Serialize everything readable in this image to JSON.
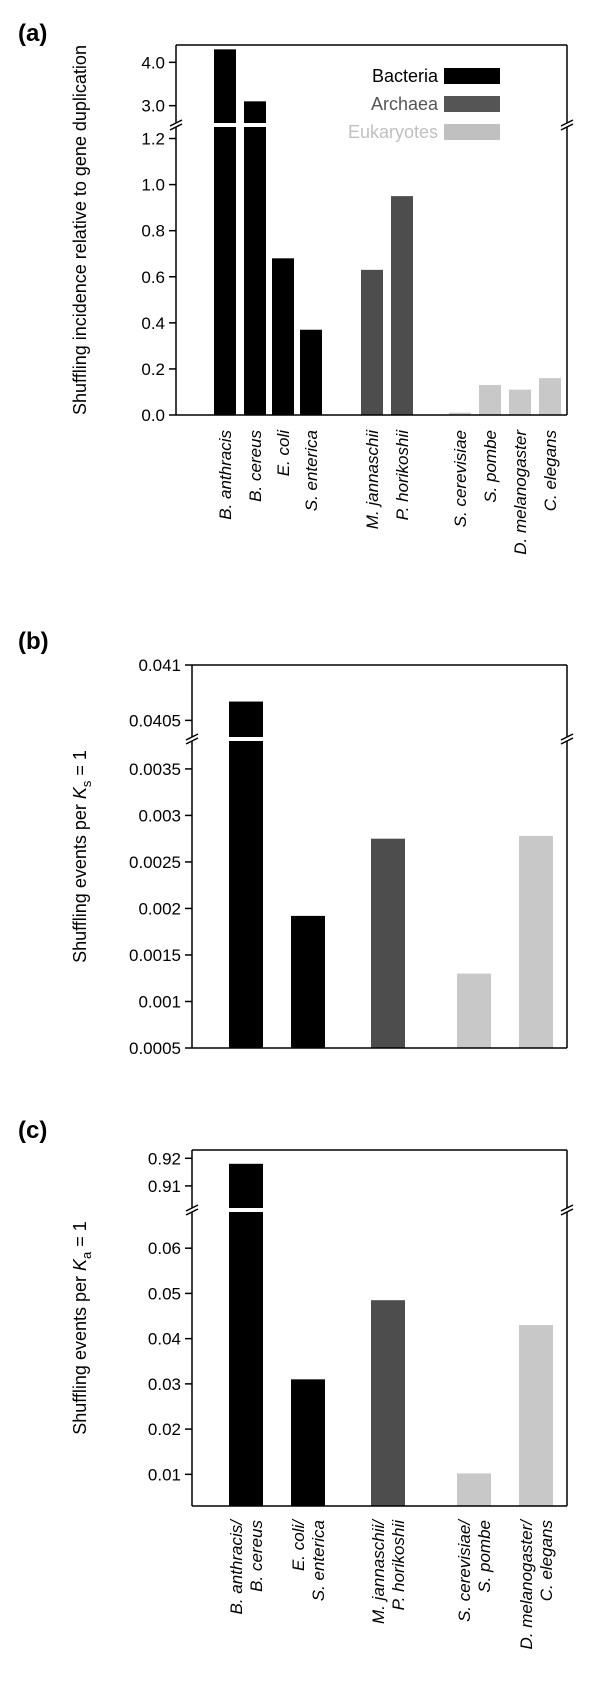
{
  "panels": [
    {
      "letter": "(a)"
    },
    {
      "letter": "(b)"
    },
    {
      "letter": "(c)"
    }
  ],
  "colors": {
    "Bacteria": "#000000",
    "Archaea": "#4d4d4d",
    "Eukaryotes": "#c8c8c8",
    "axis": "#000000",
    "legend_Bacteria": "#000000",
    "legend_Archaea": "#555555",
    "legend_Eukaryotes": "#c0c0c0"
  },
  "chart_data": [
    {
      "type": "bar",
      "panel": "(a)",
      "ylabel": "Shuffling incidence relative to gene duplication",
      "y_axis": "broken",
      "ylim_lower": [
        0,
        1.25
      ],
      "ylim_upper": [
        2.6,
        4.4
      ],
      "yticks_lower": [
        "0.0",
        "0.2",
        "0.4",
        "0.6",
        "0.8",
        "1.0",
        "1.2"
      ],
      "yticks_upper": [
        "3.0",
        "4.0"
      ],
      "legend": {
        "placement": "top-right",
        "entries": [
          "Bacteria",
          "Archaea",
          "Eukaryotes"
        ]
      },
      "categories": [
        "B. anthracis",
        "B. cereus",
        "E. coli",
        "S. enterica",
        "M. jannaschii",
        "P. horikoshii",
        "S. cerevisiae",
        "S. pombe",
        "D. melanogaster",
        "C. elegans"
      ],
      "groups": [
        "Bacteria",
        "Bacteria",
        "Bacteria",
        "Bacteria",
        "Archaea",
        "Archaea",
        "Eukaryotes",
        "Eukaryotes",
        "Eukaryotes",
        "Eukaryotes"
      ],
      "values": [
        4.3,
        3.1,
        0.68,
        0.37,
        0.63,
        0.95,
        0.01,
        0.13,
        0.11,
        0.16
      ]
    },
    {
      "type": "bar",
      "panel": "(b)",
      "ylabel_prefix": "Shuffling events per ",
      "ylabel_var": "K",
      "ylabel_sub": "s",
      "ylabel_suffix": " = 1",
      "y_axis": "broken",
      "ylim_lower": [
        0.0005,
        0.0038
      ],
      "ylim_upper": [
        0.04035,
        0.041
      ],
      "yticks_lower": [
        "0.0005",
        "0.001",
        "0.0015",
        "0.002",
        "0.0025",
        "0.003",
        "0.0035"
      ],
      "yticks_upper": [
        "0.0405",
        "0.041"
      ],
      "categories": [
        "B. anthracis/B. cereus",
        "E. coli/S. enterica",
        "M. jannaschii/P. horikoshii",
        "S. cerevisiae/S. pombe",
        "D. melanogaster/C. elegans"
      ],
      "groups": [
        "Bacteria",
        "Bacteria",
        "Archaea",
        "Eukaryotes",
        "Eukaryotes"
      ],
      "values": [
        0.04067,
        0.00192,
        0.00275,
        0.0013,
        0.00278
      ]
    },
    {
      "type": "bar",
      "panel": "(c)",
      "ylabel_prefix": "Shuffling events per ",
      "ylabel_var": "K",
      "ylabel_sub": "a",
      "ylabel_suffix": " = 1",
      "y_axis": "broken",
      "ylim_lower": [
        0.003,
        0.068
      ],
      "ylim_upper": [
        0.902,
        0.923
      ],
      "yticks_lower": [
        "0.01",
        "0.02",
        "0.03",
        "0.04",
        "0.05",
        "0.06"
      ],
      "yticks_upper": [
        "0.91",
        "0.92"
      ],
      "categories": [
        "B. anthracis/B. cereus",
        "E. coli/S. enterica",
        "M. jannaschii/P. horikoshii",
        "S. cerevisiae/S. pombe",
        "D. melanogaster/C. elegans"
      ],
      "category_labels": [
        [
          "B. anthracis/",
          "B. cereus"
        ],
        [
          "E. coli/",
          "S. enterica"
        ],
        [
          "M. jannaschii/",
          "P. horikoshii"
        ],
        [
          "S. cerevisiae/",
          "S. pombe"
        ],
        [
          "D. melanogaster/",
          "C. elegans"
        ]
      ],
      "groups": [
        "Bacteria",
        "Bacteria",
        "Archaea",
        "Eukaryotes",
        "Eukaryotes"
      ],
      "values": [
        0.918,
        0.031,
        0.0485,
        0.0102,
        0.043
      ]
    }
  ]
}
